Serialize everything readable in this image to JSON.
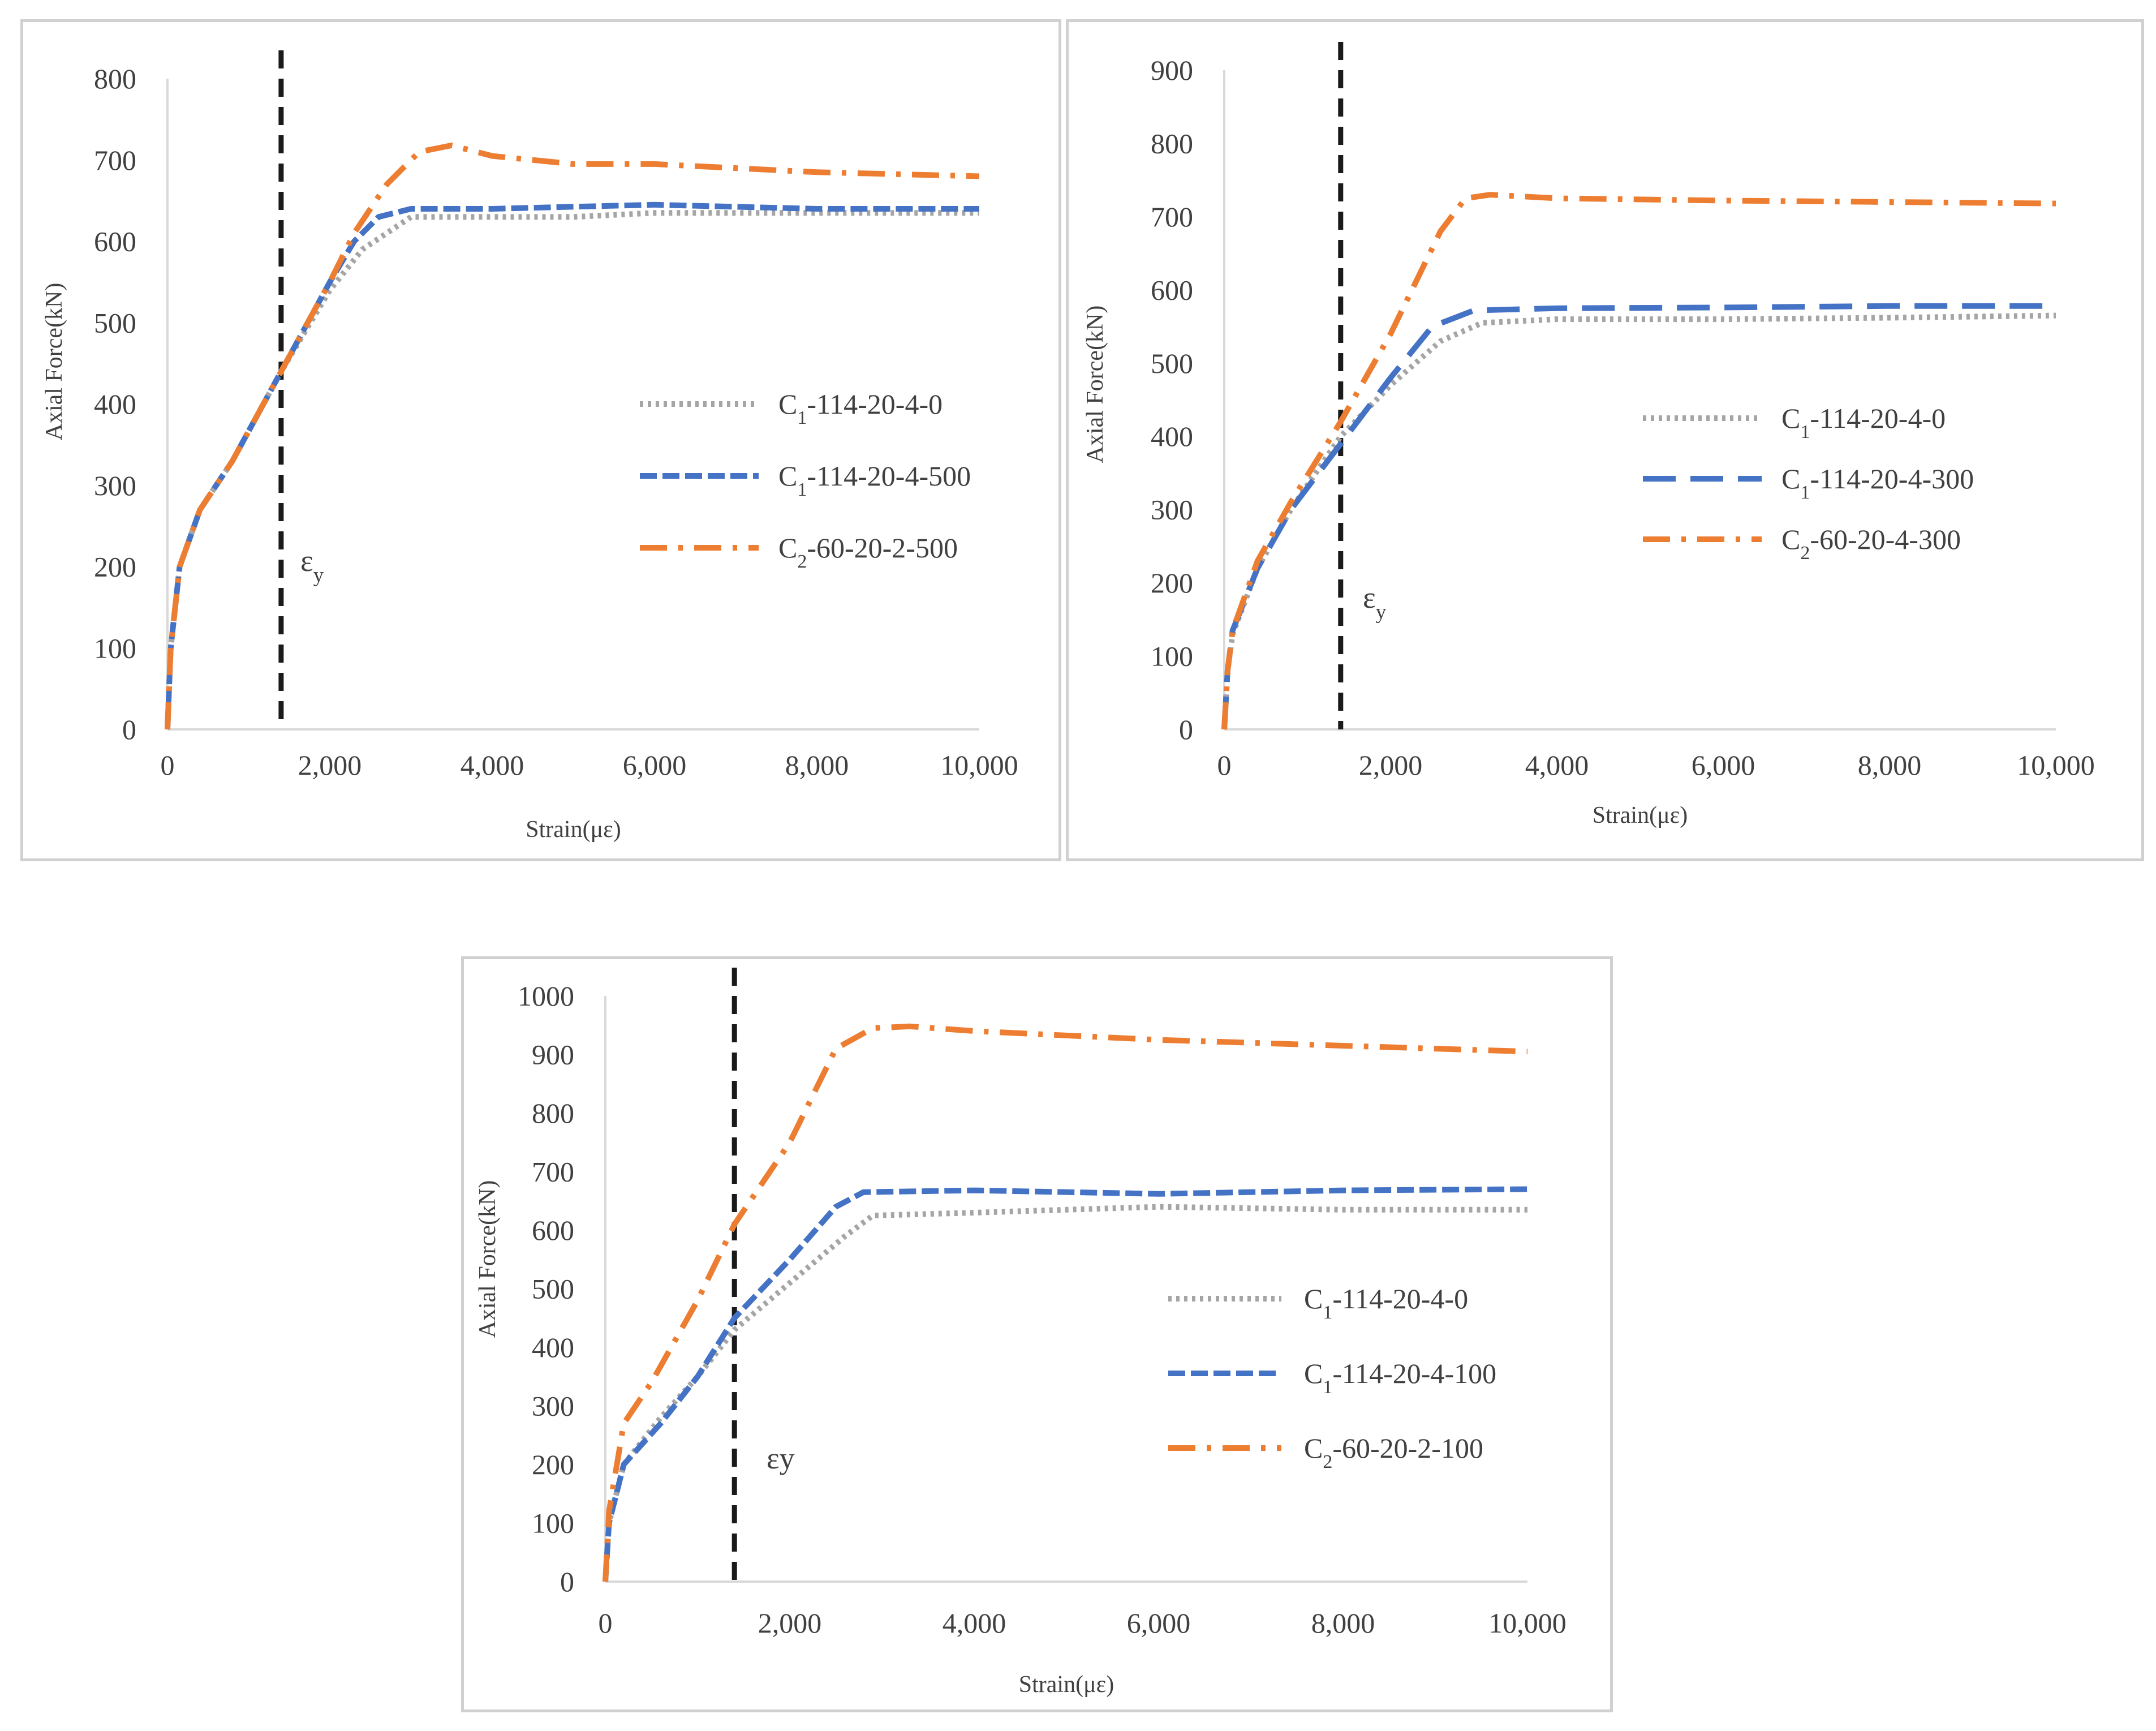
{
  "chart_data": [
    {
      "type": "line",
      "title": "",
      "xlabel": "Strain(με)",
      "ylabel": "Axial Force(kN)",
      "xlim": [
        0,
        10000
      ],
      "ylim": [
        0,
        800
      ],
      "xticks": [
        0,
        2000,
        4000,
        6000,
        8000,
        10000
      ],
      "xtick_labels": [
        "0",
        "2,000",
        "4,000",
        "6,000",
        "8,000",
        "10,000"
      ],
      "yticks": [
        0,
        100,
        200,
        300,
        400,
        500,
        600,
        700,
        800
      ],
      "ytick_labels": [
        "0",
        "100",
        "200",
        "300",
        "400",
        "500",
        "600",
        "700",
        "800"
      ],
      "grid": false,
      "legend_position": "right",
      "yield_strain": 1400,
      "yield_label": "ε",
      "yield_label_sub": "y",
      "series": [
        {
          "name": "C1-114-20-4-0",
          "label_pre": "C",
          "label_sub": "1",
          "label_post": "-114-20-4-0",
          "color": "#a5a5a5",
          "style": "dotted",
          "x": [
            0,
            40,
            150,
            400,
            800,
            1400,
            2000,
            2400,
            3000,
            4000,
            5000,
            6000,
            8000,
            10000
          ],
          "y": [
            0,
            100,
            200,
            270,
            330,
            440,
            540,
            590,
            630,
            630,
            630,
            635,
            635,
            635
          ]
        },
        {
          "name": "C1-114-20-4-500",
          "label_pre": "C",
          "label_sub": "1",
          "label_post": "-114-20-4-500",
          "color": "#4472c4",
          "style": "dashed",
          "x": [
            0,
            40,
            150,
            400,
            800,
            1400,
            2000,
            2300,
            2600,
            3000,
            4000,
            6000,
            8000,
            10000
          ],
          "y": [
            0,
            100,
            200,
            270,
            330,
            440,
            550,
            600,
            630,
            640,
            640,
            645,
            640,
            640
          ]
        },
        {
          "name": "C2-60-20-2-500",
          "label_pre": "C",
          "label_sub": "2",
          "label_post": "-60-20-2-500",
          "color": "#ed7d31",
          "style": "dashdot",
          "x": [
            0,
            40,
            150,
            400,
            800,
            1400,
            2000,
            2300,
            2700,
            3100,
            3500,
            4000,
            5000,
            6000,
            8000,
            10000
          ],
          "y": [
            0,
            100,
            200,
            270,
            330,
            440,
            550,
            610,
            670,
            710,
            718,
            705,
            695,
            695,
            685,
            680
          ]
        }
      ]
    },
    {
      "type": "line",
      "title": "",
      "xlabel": "Strain(με)",
      "ylabel": "Axial Force(kN)",
      "xlim": [
        0,
        10000
      ],
      "ylim": [
        0,
        900
      ],
      "xticks": [
        0,
        2000,
        4000,
        6000,
        8000,
        10000
      ],
      "xtick_labels": [
        "0",
        "2,000",
        "4,000",
        "6,000",
        "8,000",
        "10,000"
      ],
      "yticks": [
        0,
        100,
        200,
        300,
        400,
        500,
        600,
        700,
        800,
        900
      ],
      "ytick_labels": [
        "0",
        "100",
        "200",
        "300",
        "400",
        "500",
        "600",
        "700",
        "800",
        "900"
      ],
      "grid": false,
      "legend_position": "right",
      "yield_strain": 1400,
      "yield_label": "ε",
      "yield_label_sub": "y",
      "series": [
        {
          "name": "C1-114-20-4-0",
          "label_pre": "C",
          "label_sub": "1",
          "label_post": "-114-20-4-0",
          "color": "#a5a5a5",
          "style": "dotted",
          "x": [
            0,
            40,
            100,
            400,
            800,
            1400,
            2000,
            2600,
            3100,
            4000,
            6000,
            8000,
            10000
          ],
          "y": [
            0,
            80,
            130,
            220,
            300,
            400,
            470,
            530,
            555,
            560,
            560,
            562,
            565
          ]
        },
        {
          "name": "C1-114-20-4-300",
          "label_pre": "C",
          "label_sub": "1",
          "label_post": "-114-20-4-300",
          "color": "#4472c4",
          "style": "longdash",
          "x": [
            0,
            40,
            100,
            400,
            800,
            1400,
            2000,
            2500,
            3000,
            4000,
            6000,
            8000,
            10000
          ],
          "y": [
            0,
            80,
            135,
            220,
            300,
            390,
            480,
            550,
            572,
            575,
            576,
            578,
            578
          ]
        },
        {
          "name": "C2-60-20-4-300",
          "label_pre": "C",
          "label_sub": "2",
          "label_post": "-60-20-4-300",
          "color": "#ed7d31",
          "style": "dashdot",
          "x": [
            0,
            40,
            100,
            400,
            800,
            1400,
            2000,
            2600,
            2900,
            3200,
            4000,
            6000,
            8000,
            10000
          ],
          "y": [
            0,
            80,
            135,
            230,
            310,
            420,
            540,
            680,
            725,
            730,
            725,
            722,
            720,
            718
          ]
        }
      ]
    },
    {
      "type": "line",
      "title": "",
      "xlabel": "Strain(με)",
      "ylabel": "Axial Force(kN)",
      "xlim": [
        0,
        10000
      ],
      "ylim": [
        0,
        1000
      ],
      "xticks": [
        0,
        2000,
        4000,
        6000,
        8000,
        10000
      ],
      "xtick_labels": [
        "0",
        "2,000",
        "4,000",
        "6,000",
        "8,000",
        "10,000"
      ],
      "yticks": [
        0,
        100,
        200,
        300,
        400,
        500,
        600,
        700,
        800,
        900,
        1000
      ],
      "ytick_labels": [
        "0",
        "100",
        "200",
        "300",
        "400",
        "500",
        "600",
        "700",
        "800",
        "900",
        "1000"
      ],
      "grid": false,
      "legend_position": "right",
      "yield_strain": 1400,
      "yield_label": "εy",
      "yield_label_sub": "",
      "series": [
        {
          "name": "C1-114-20-4-0",
          "label_pre": "C",
          "label_sub": "1",
          "label_post": "-114-20-4-0",
          "color": "#a5a5a5",
          "style": "dotted",
          "x": [
            0,
            40,
            200,
            600,
            1000,
            1400,
            2000,
            2600,
            2900,
            4000,
            6000,
            8000,
            10000
          ],
          "y": [
            0,
            100,
            200,
            280,
            350,
            430,
            510,
            590,
            625,
            630,
            640,
            635,
            635
          ]
        },
        {
          "name": "C1-114-20-4-100",
          "label_pre": "C",
          "label_sub": "1",
          "label_post": "-114-20-4-100",
          "color": "#4472c4",
          "style": "dashed",
          "x": [
            0,
            40,
            200,
            600,
            1000,
            1400,
            2000,
            2500,
            2800,
            4000,
            6000,
            8000,
            10000
          ],
          "y": [
            0,
            100,
            200,
            270,
            350,
            450,
            550,
            640,
            665,
            668,
            662,
            668,
            670
          ]
        },
        {
          "name": "C2-60-20-2-100",
          "label_pre": "C",
          "label_sub": "2",
          "label_post": "-60-20-2-100",
          "color": "#ed7d31",
          "style": "dashdot",
          "x": [
            0,
            40,
            200,
            500,
            1000,
            1400,
            2000,
            2500,
            2900,
            3300,
            4000,
            6000,
            8000,
            10000
          ],
          "y": [
            0,
            120,
            270,
            340,
            480,
            610,
            750,
            910,
            945,
            948,
            940,
            925,
            915,
            905
          ]
        }
      ]
    }
  ]
}
